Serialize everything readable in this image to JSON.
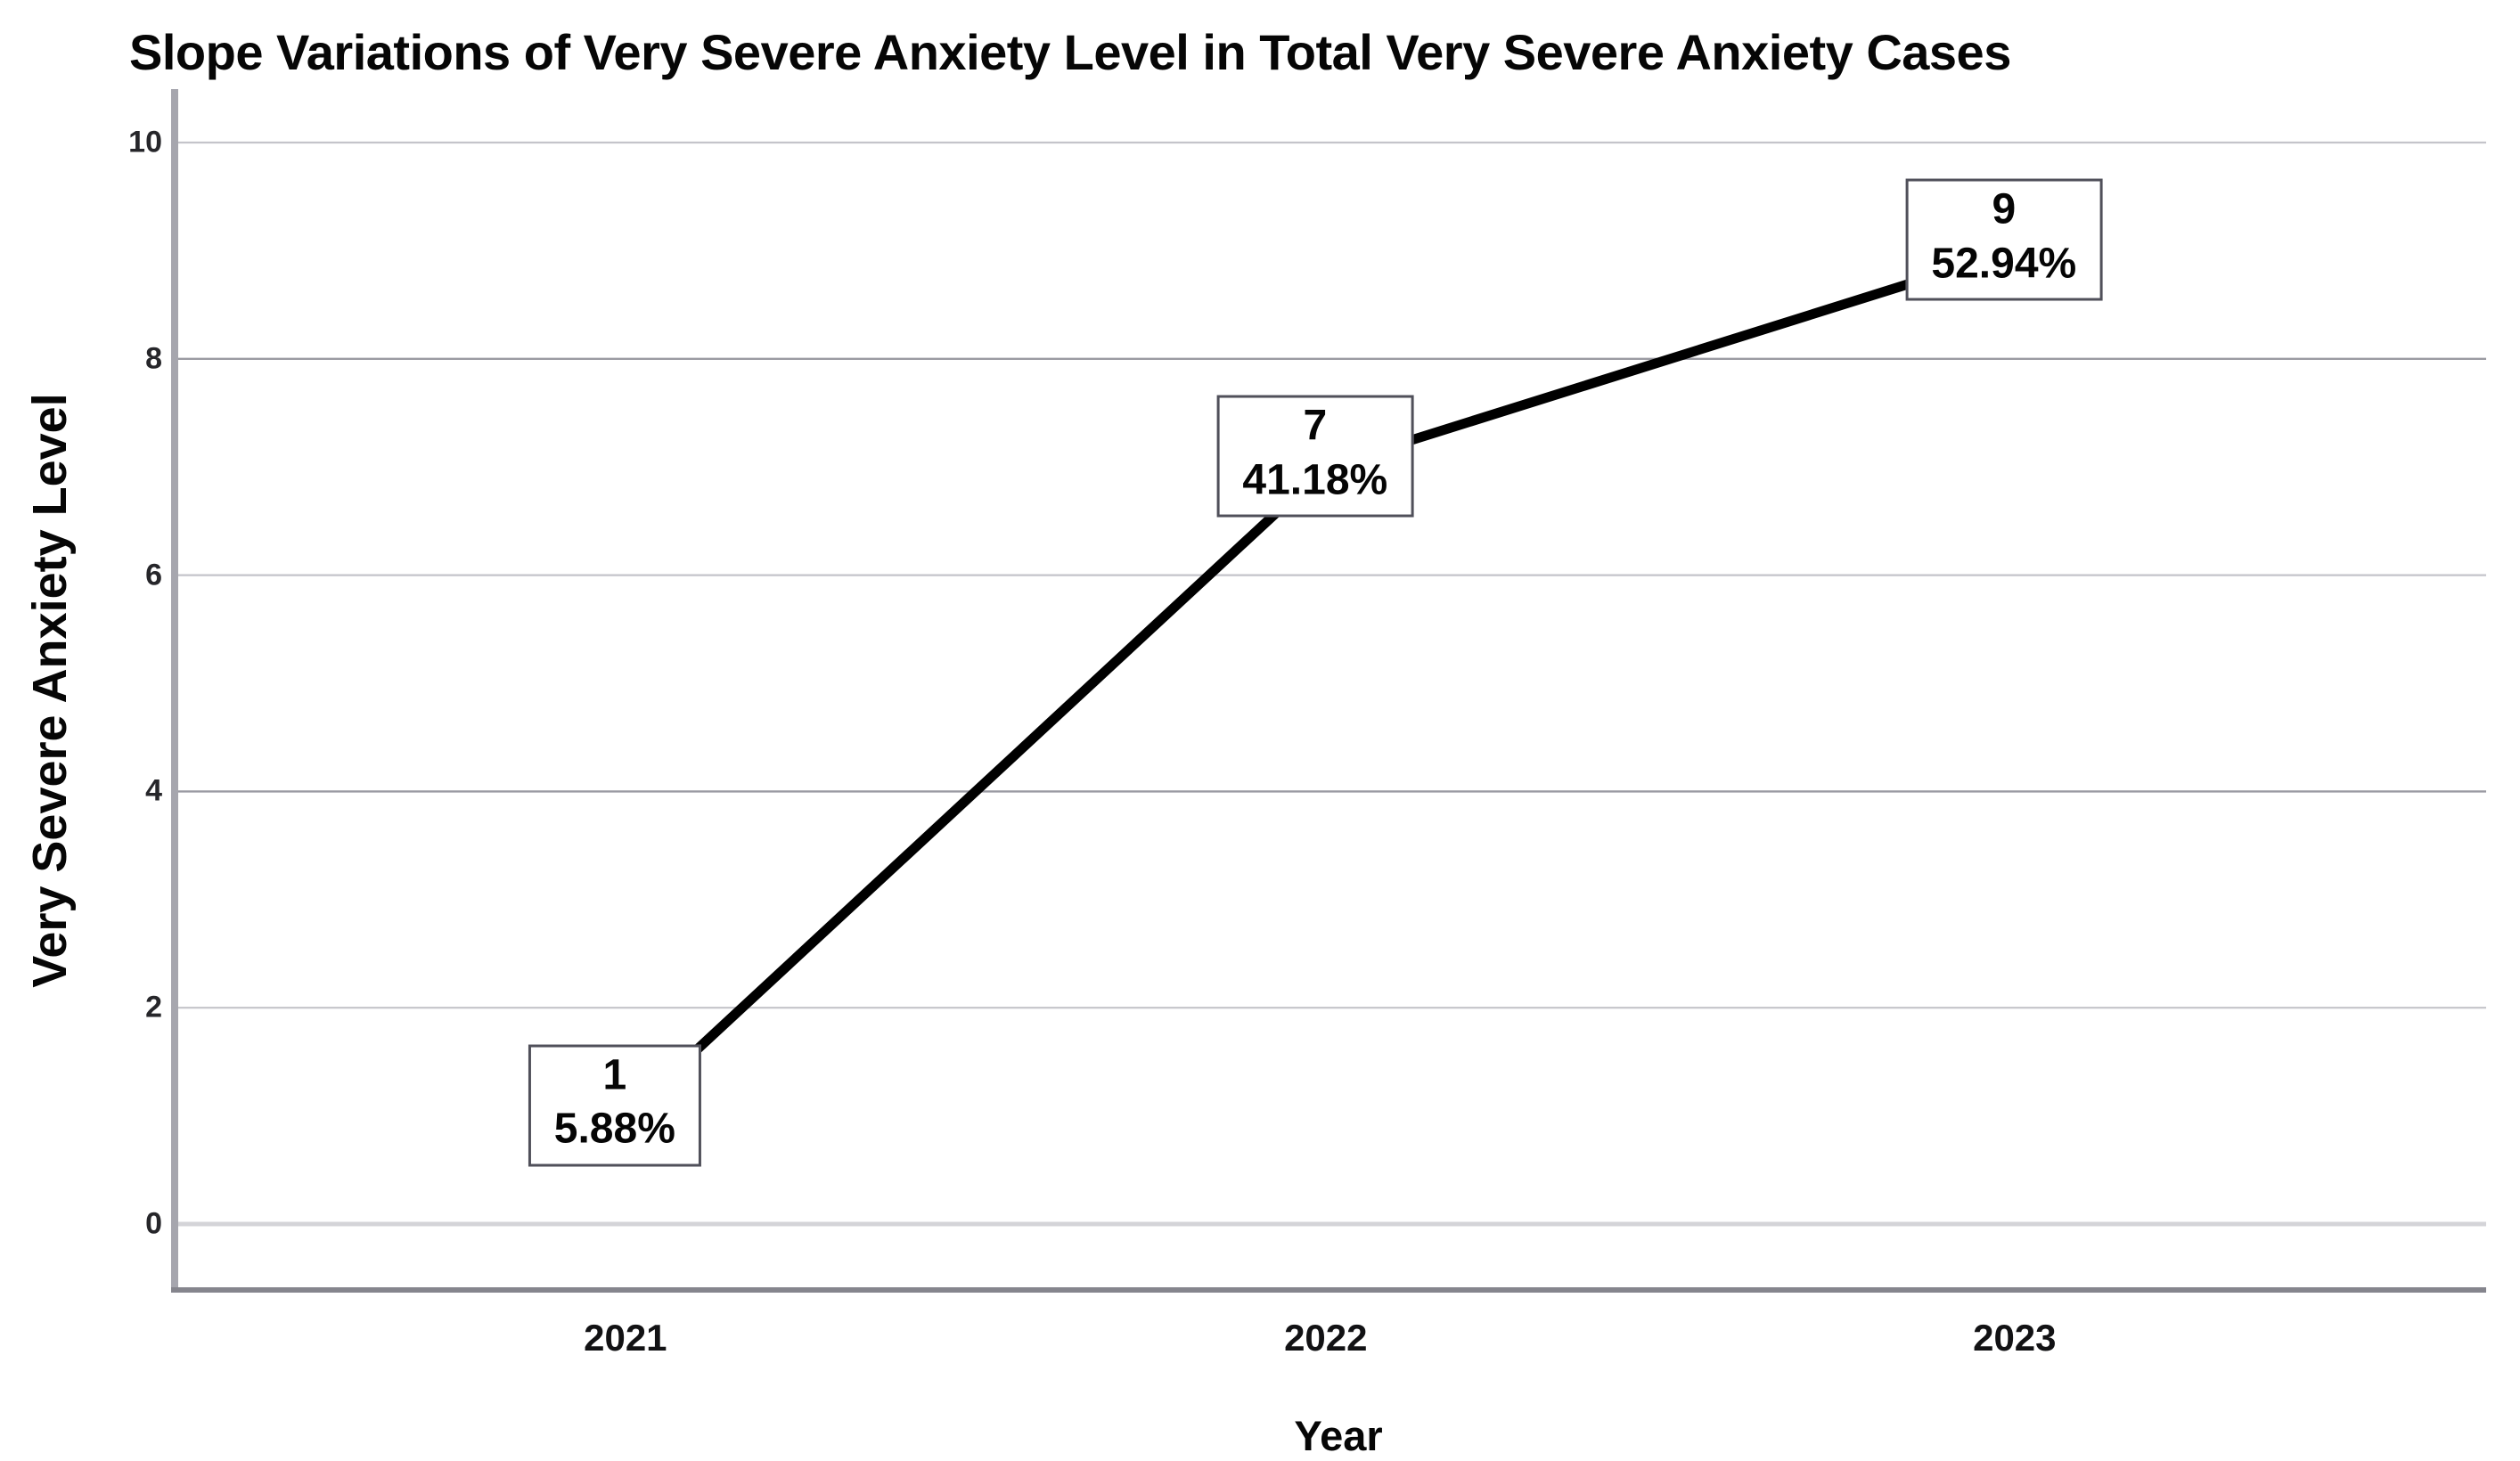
{
  "chart_data": {
    "type": "line",
    "title": "Slope Variations of Very Severe Anxiety Level in Total Very Severe Anxiety Cases",
    "categories": [
      "2021",
      "2022",
      "2023"
    ],
    "values": [
      1,
      7,
      9
    ],
    "point_labels": [
      {
        "value": "1",
        "percent": "5.88%"
      },
      {
        "value": "7",
        "percent": "41.18%"
      },
      {
        "value": "9",
        "percent": "52.94%"
      }
    ],
    "xlabel": "Year",
    "ylabel": "Very Severe Anxiety Level",
    "ylim": [
      0,
      10
    ],
    "yticks": [
      0,
      2,
      4,
      6,
      8,
      10
    ],
    "grid": "horizontal-only",
    "legend": "none",
    "line_color": "#000000",
    "label_box_fill": "#ffffff",
    "label_box_border": "#50505a",
    "gridline_color": "#b2b2ba",
    "axis_line_color": "#a6a6ae",
    "baseline_color": "#85858d"
  }
}
